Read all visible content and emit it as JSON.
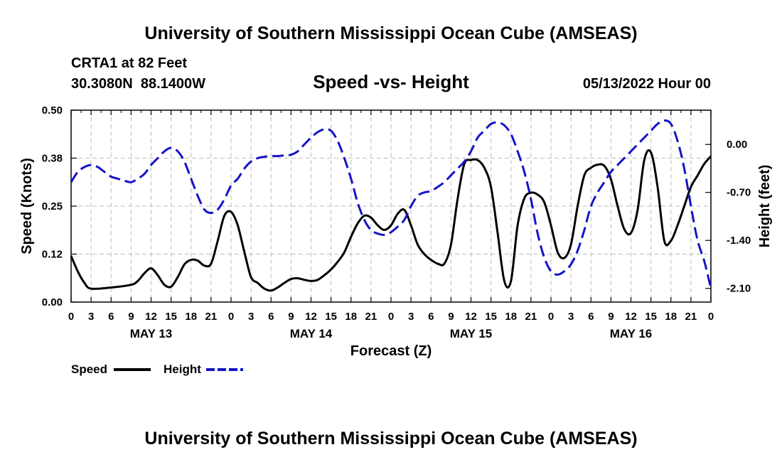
{
  "page_title": "University of Southern Mississippi Ocean Cube (AMSEAS)",
  "footer_title": "University of Southern Mississippi Ocean Cube (AMSEAS)",
  "station": {
    "name": "CRTA1 at 82 Feet",
    "coords": "30.3080N  88.1400W",
    "datetime": "05/13/2022 Hour 00"
  },
  "chart_data": {
    "type": "line",
    "title": "Speed -vs- Height",
    "xlabel": "Forecast (Z)",
    "ylabel_left": "Speed (Knots)",
    "ylabel_right": "Height (feet)",
    "xlim": [
      0,
      96
    ],
    "ylim_left": [
      0,
      0.5
    ],
    "ylim_right": [
      -2.3,
      0.5
    ],
    "grid": true,
    "x_ticks": [
      {
        "x": 0,
        "label": "0"
      },
      {
        "x": 3,
        "label": "3"
      },
      {
        "x": 6,
        "label": "6"
      },
      {
        "x": 9,
        "label": "9"
      },
      {
        "x": 12,
        "label": "12"
      },
      {
        "x": 15,
        "label": "15"
      },
      {
        "x": 18,
        "label": "18"
      },
      {
        "x": 21,
        "label": "21"
      },
      {
        "x": 24,
        "label": "0"
      },
      {
        "x": 27,
        "label": "3"
      },
      {
        "x": 30,
        "label": "6"
      },
      {
        "x": 33,
        "label": "9"
      },
      {
        "x": 36,
        "label": "12"
      },
      {
        "x": 39,
        "label": "15"
      },
      {
        "x": 42,
        "label": "18"
      },
      {
        "x": 45,
        "label": "21"
      },
      {
        "x": 48,
        "label": "0"
      },
      {
        "x": 51,
        "label": "3"
      },
      {
        "x": 54,
        "label": "6"
      },
      {
        "x": 57,
        "label": "9"
      },
      {
        "x": 60,
        "label": "12"
      },
      {
        "x": 63,
        "label": "15"
      },
      {
        "x": 66,
        "label": "18"
      },
      {
        "x": 69,
        "label": "21"
      },
      {
        "x": 72,
        "label": "0"
      },
      {
        "x": 75,
        "label": "3"
      },
      {
        "x": 78,
        "label": "6"
      },
      {
        "x": 81,
        "label": "9"
      },
      {
        "x": 84,
        "label": "12"
      },
      {
        "x": 87,
        "label": "15"
      },
      {
        "x": 90,
        "label": "18"
      },
      {
        "x": 93,
        "label": "21"
      },
      {
        "x": 96,
        "label": "0"
      }
    ],
    "day_labels": [
      {
        "x": 12,
        "label": "MAY 13"
      },
      {
        "x": 36,
        "label": "MAY 14"
      },
      {
        "x": 60,
        "label": "MAY 15"
      },
      {
        "x": 84,
        "label": "MAY 16"
      }
    ],
    "y_left_ticks": [
      {
        "value": 0.0,
        "label": "0.00"
      },
      {
        "value": 0.125,
        "label": "0.12"
      },
      {
        "value": 0.25,
        "label": "0.25"
      },
      {
        "value": 0.375,
        "label": "0.38"
      },
      {
        "value": 0.5,
        "label": "0.50"
      }
    ],
    "y_right_ticks": [
      {
        "value": 0.0,
        "label": "0.00"
      },
      {
        "value": -0.7,
        "label": "-0.70"
      },
      {
        "value": -1.4,
        "label": "-1.40"
      },
      {
        "value": -2.1,
        "label": "-2.10"
      }
    ],
    "series": [
      {
        "name": "Speed",
        "axis": "left",
        "color": "#000000",
        "dash": "solid",
        "x": [
          0,
          1,
          2,
          3,
          6,
          9,
          10,
          11,
          12,
          13,
          14,
          15,
          16,
          17,
          18,
          19,
          20,
          21,
          22,
          23,
          24,
          25,
          26,
          27,
          28,
          29,
          30,
          31,
          32,
          33,
          34,
          35,
          36,
          37,
          38,
          39,
          40,
          41,
          42,
          43,
          44,
          45,
          46,
          47,
          48,
          49,
          50,
          51,
          52,
          53,
          54,
          55,
          56,
          57,
          58,
          59,
          60,
          61,
          62,
          63,
          64,
          65,
          66,
          67,
          68,
          69,
          70,
          71,
          72,
          73,
          74,
          75,
          76,
          77,
          78,
          79,
          80,
          81,
          82,
          83,
          84,
          85,
          86,
          87,
          88,
          89,
          90,
          91,
          92,
          93,
          94,
          95,
          96
        ],
        "values": [
          0.12,
          0.08,
          0.05,
          0.035,
          0.038,
          0.045,
          0.055,
          0.075,
          0.088,
          0.07,
          0.045,
          0.04,
          0.065,
          0.098,
          0.11,
          0.108,
          0.095,
          0.1,
          0.16,
          0.225,
          0.235,
          0.2,
          0.13,
          0.065,
          0.05,
          0.035,
          0.03,
          0.038,
          0.05,
          0.06,
          0.062,
          0.058,
          0.055,
          0.058,
          0.07,
          0.085,
          0.105,
          0.13,
          0.17,
          0.205,
          0.225,
          0.22,
          0.2,
          0.188,
          0.2,
          0.23,
          0.24,
          0.2,
          0.15,
          0.125,
          0.11,
          0.1,
          0.1,
          0.15,
          0.27,
          0.36,
          0.37,
          0.37,
          0.35,
          0.3,
          0.18,
          0.055,
          0.055,
          0.2,
          0.27,
          0.285,
          0.28,
          0.26,
          0.2,
          0.13,
          0.115,
          0.15,
          0.25,
          0.33,
          0.35,
          0.358,
          0.355,
          0.32,
          0.25,
          0.19,
          0.18,
          0.24,
          0.37,
          0.39,
          0.3,
          0.16,
          0.16,
          0.2,
          0.25,
          0.3,
          0.33,
          0.36,
          0.38
        ]
      },
      {
        "name": "Height",
        "axis": "right",
        "color": "#1414c8",
        "dash": "dashed",
        "x": [
          0,
          1,
          2,
          3,
          4,
          5,
          6,
          7,
          8,
          9,
          10,
          11,
          12,
          13,
          14,
          15,
          16,
          17,
          18,
          19,
          20,
          21,
          22,
          23,
          24,
          25,
          26,
          27,
          28,
          29,
          30,
          31,
          32,
          33,
          34,
          35,
          36,
          37,
          38,
          39,
          40,
          41,
          42,
          43,
          44,
          45,
          46,
          47,
          48,
          49,
          50,
          51,
          52,
          53,
          54,
          55,
          56,
          57,
          58,
          59,
          60,
          61,
          62,
          63,
          64,
          65,
          66,
          67,
          68,
          69,
          70,
          71,
          72,
          73,
          74,
          75,
          76,
          77,
          78,
          79,
          80,
          81,
          82,
          83,
          84,
          85,
          86,
          87,
          88,
          89,
          90,
          91,
          92,
          93,
          94,
          95,
          96
        ],
        "values": [
          -0.55,
          -0.4,
          -0.33,
          -0.3,
          -0.33,
          -0.4,
          -0.47,
          -0.5,
          -0.53,
          -0.55,
          -0.5,
          -0.43,
          -0.3,
          -0.2,
          -0.1,
          -0.05,
          -0.1,
          -0.25,
          -0.5,
          -0.75,
          -0.95,
          -1.0,
          -0.95,
          -0.8,
          -0.6,
          -0.5,
          -0.35,
          -0.25,
          -0.2,
          -0.18,
          -0.17,
          -0.17,
          -0.16,
          -0.15,
          -0.1,
          0.0,
          0.1,
          0.18,
          0.22,
          0.2,
          0.05,
          -0.2,
          -0.5,
          -0.85,
          -1.1,
          -1.25,
          -1.3,
          -1.32,
          -1.28,
          -1.2,
          -1.1,
          -0.9,
          -0.75,
          -0.7,
          -0.68,
          -0.62,
          -0.55,
          -0.45,
          -0.35,
          -0.25,
          -0.1,
          0.1,
          0.2,
          0.3,
          0.32,
          0.28,
          0.15,
          -0.1,
          -0.4,
          -0.8,
          -1.3,
          -1.65,
          -1.85,
          -1.9,
          -1.85,
          -1.75,
          -1.55,
          -1.25,
          -0.9,
          -0.7,
          -0.55,
          -0.4,
          -0.3,
          -0.2,
          -0.1,
          0.0,
          0.1,
          0.2,
          0.3,
          0.35,
          0.3,
          0.05,
          -0.35,
          -0.9,
          -1.4,
          -1.7,
          -2.1
        ]
      }
    ],
    "legend": {
      "placement": "bottom-left",
      "entries": [
        {
          "label": "Speed"
        },
        {
          "label": "Height"
        }
      ]
    }
  }
}
